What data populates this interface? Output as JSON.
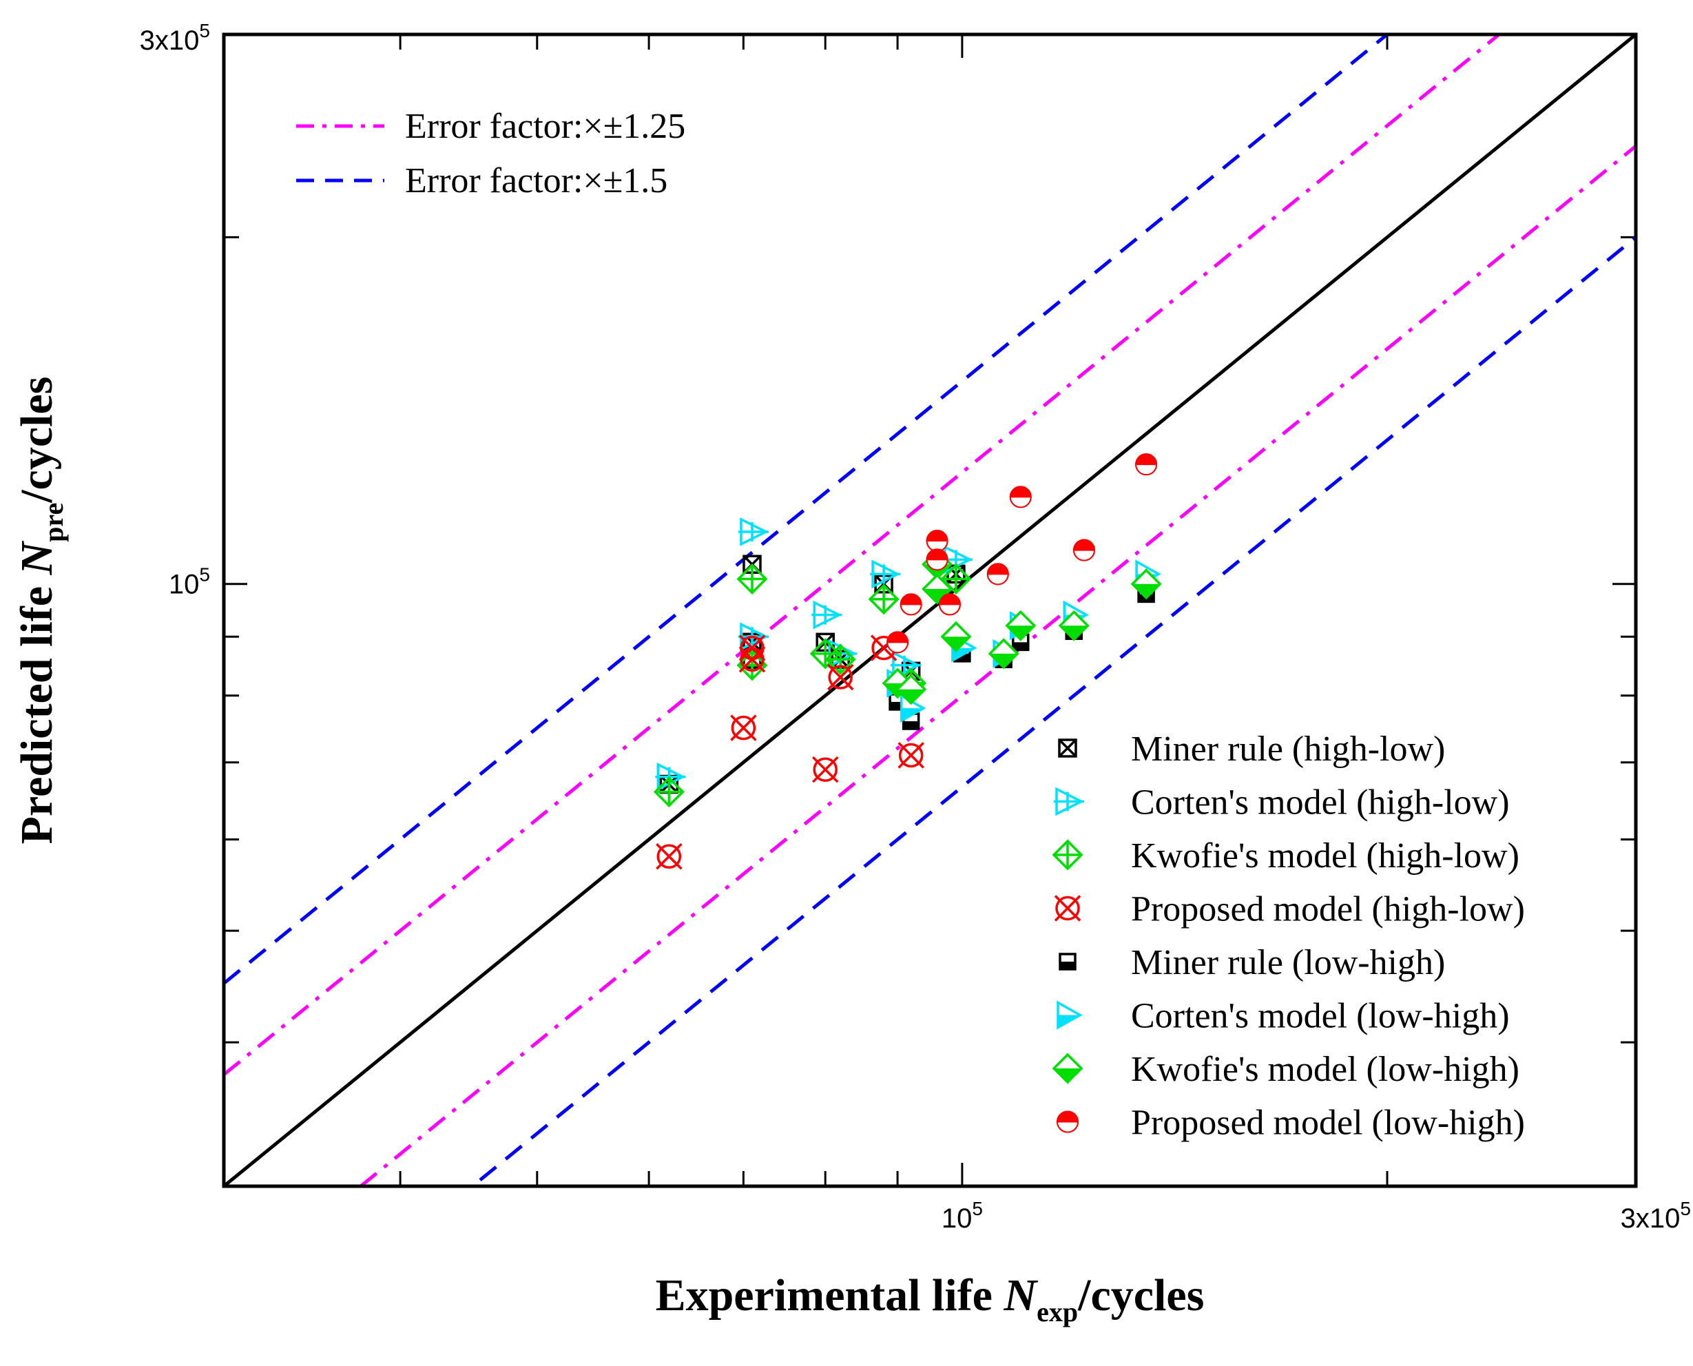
{
  "chart_data": {
    "type": "scatter",
    "scale": "log-log",
    "xlim": [
      30000,
      300000
    ],
    "ylim": [
      30000,
      300000
    ],
    "x_tick_labels": [
      {
        "value": 100000,
        "base": "10",
        "exp": "5"
      },
      {
        "value": 300000,
        "base": "3x10",
        "exp": "5"
      }
    ],
    "y_tick_labels": [
      {
        "value": 100000,
        "base": "10",
        "exp": "5"
      },
      {
        "value": 300000,
        "base": "3x10",
        "exp": "5"
      }
    ],
    "xlabel": {
      "pre": "Experimental life ",
      "var": "N",
      "sub": "exp",
      "post": "/cycles"
    },
    "ylabel": {
      "pre": "Predicted life ",
      "var": "N",
      "sub": "pre",
      "post": "/cycles"
    },
    "reference_lines": [
      {
        "name": "Error factor:×±1.25",
        "factors": [
          1.25,
          0.8
        ],
        "color": "#ff00ff",
        "style": "dash-dot"
      },
      {
        "name": "Error factor:×±1.5",
        "factors": [
          1.5,
          0.6667
        ],
        "color": "#0000ff",
        "style": "dash"
      }
    ],
    "identity_line_color": "#000000",
    "series": [
      {
        "name": "Miner rule (high-low)",
        "marker": "square-x",
        "color": "#000000",
        "points": [
          [
            62000,
            67000
          ],
          [
            71000,
            104000
          ],
          [
            71000,
            89000
          ],
          [
            71000,
            86000
          ],
          [
            80000,
            89000
          ],
          [
            82000,
            86000
          ],
          [
            88000,
            100000
          ],
          [
            92000,
            84000
          ],
          [
            99000,
            102000
          ]
        ]
      },
      {
        "name": "Corten's model (high-low)",
        "marker": "tri-plus",
        "color": "#00e0ff",
        "points": [
          [
            62000,
            68000
          ],
          [
            71000,
            111000
          ],
          [
            71000,
            90000
          ],
          [
            80000,
            94000
          ],
          [
            82000,
            87000
          ],
          [
            88000,
            102000
          ],
          [
            91000,
            85000
          ],
          [
            99000,
            105000
          ]
        ]
      },
      {
        "name": "Kwofie's model (high-low)",
        "marker": "diamond-plus",
        "color": "#00dd00",
        "points": [
          [
            62000,
            66000
          ],
          [
            71000,
            101000
          ],
          [
            71000,
            85000
          ],
          [
            80000,
            87000
          ],
          [
            82000,
            86000
          ],
          [
            88000,
            97000
          ],
          [
            92000,
            82000
          ],
          [
            99000,
            101000
          ]
        ]
      },
      {
        "name": "Proposed model (high-low)",
        "marker": "circle-x",
        "color": "#ff0000",
        "points": [
          [
            62000,
            58000
          ],
          [
            70000,
            75000
          ],
          [
            71000,
            88000
          ],
          [
            71000,
            86000
          ],
          [
            80000,
            69000
          ],
          [
            82000,
            83000
          ],
          [
            88000,
            88000
          ],
          [
            92000,
            71000
          ]
        ]
      },
      {
        "name": "Miner rule (low-high)",
        "marker": "square-half",
        "color": "#000000",
        "points": [
          [
            90000,
            79000
          ],
          [
            92000,
            76000
          ],
          [
            100000,
            87000
          ],
          [
            107000,
            86000
          ],
          [
            110000,
            89000
          ],
          [
            120000,
            91000
          ],
          [
            135000,
            98000
          ]
        ]
      },
      {
        "name": "Corten's model (low-high)",
        "marker": "tri-half",
        "color": "#00e0ff",
        "points": [
          [
            90000,
            82000
          ],
          [
            92000,
            78000
          ],
          [
            100000,
            88000
          ],
          [
            107000,
            87000
          ],
          [
            110000,
            92000
          ],
          [
            120000,
            94000
          ],
          [
            135000,
            102000
          ]
        ]
      },
      {
        "name": "Kwofie's model (low-high)",
        "marker": "diamond-half",
        "color": "#00dd00",
        "points": [
          [
            90000,
            82000
          ],
          [
            92000,
            81000
          ],
          [
            96000,
            104000
          ],
          [
            96000,
            99000
          ],
          [
            99000,
            90000
          ],
          [
            107000,
            87000
          ],
          [
            110000,
            92000
          ],
          [
            120000,
            92000
          ],
          [
            135000,
            100000
          ]
        ]
      },
      {
        "name": "Proposed model (low-high)",
        "marker": "circle-half",
        "color": "#ff0000",
        "points": [
          [
            90000,
            89000
          ],
          [
            92000,
            96000
          ],
          [
            96000,
            109000
          ],
          [
            96000,
            105000
          ],
          [
            98000,
            96000
          ],
          [
            106000,
            102000
          ],
          [
            110000,
            119000
          ],
          [
            122000,
            107000
          ],
          [
            135000,
            127000
          ]
        ]
      }
    ]
  }
}
